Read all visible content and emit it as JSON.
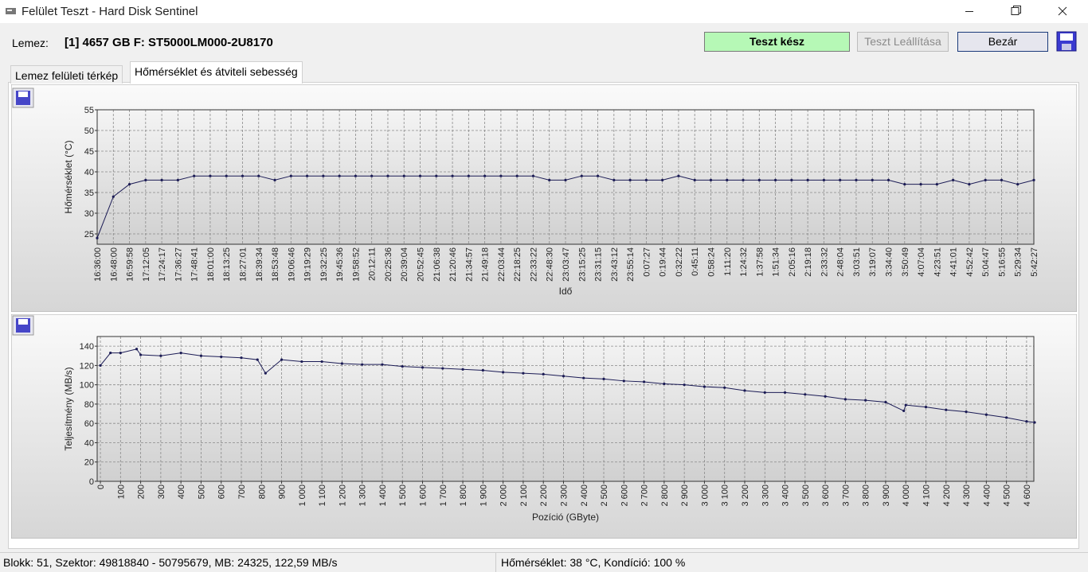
{
  "window": {
    "title": "Felület Teszt - Hard Disk Sentinel"
  },
  "header": {
    "label": "Lemez:",
    "disk": "[1] 4657 GB F: ST5000LM000-2U8170",
    "status": "Teszt kész"
  },
  "buttons": [
    "Teszt Leállítása",
    "Bezár"
  ],
  "tabs": [
    "Lemez felületi térkép",
    "Hőmérséklet és átviteli sebesség"
  ],
  "status_bar": {
    "left": "Blokk: 51, Szektor: 49818840 - 50795679, MB: 24325, 122,59 MB/s",
    "right": "Hőmérséklet: 38  °C,  Kondíció: 100 %"
  },
  "chart_data": [
    {
      "type": "line",
      "x_label": "Idő",
      "y_label": "Hőmérséklet (°C)",
      "color": "#1b1b55",
      "grid": true,
      "categories": [
        "16:36:00",
        "16:48:00",
        "16:59:58",
        "17:12:05",
        "17:24:17",
        "17:36:27",
        "17:48:41",
        "18:01:00",
        "18:13:25",
        "18:27:01",
        "18:39:34",
        "18:53:48",
        "19:06:46",
        "19:19:29",
        "19:32:25",
        "19:45:36",
        "19:58:52",
        "20:12:11",
        "20:25:36",
        "20:39:04",
        "20:52:45",
        "21:06:38",
        "21:20:46",
        "21:34:57",
        "21:49:18",
        "22:03:44",
        "22:18:25",
        "22:33:22",
        "22:48:30",
        "23:03:47",
        "23:15:25",
        "23:31:15",
        "23:43:12",
        "23:55:14",
        "0:07:27",
        "0:19:44",
        "0:32:22",
        "0:45:11",
        "0:58:24",
        "1:11:20",
        "1:24:32",
        "1:37:58",
        "1:51:34",
        "2:05:16",
        "2:19:18",
        "2:33:32",
        "2:48:04",
        "3:03:51",
        "3:19:07",
        "3:34:40",
        "3:50:49",
        "4:07:04",
        "4:23:51",
        "4:41:01",
        "4:52:42",
        "5:04:47",
        "5:16:55",
        "5:29:34",
        "5:42:27"
      ],
      "values": [
        24,
        34,
        37,
        38,
        38,
        38,
        39,
        39,
        39,
        39,
        39,
        38,
        39,
        39,
        39,
        39,
        39,
        39,
        39,
        39,
        39,
        39,
        39,
        39,
        39,
        39,
        39,
        39,
        38,
        38,
        39,
        39,
        38,
        38,
        38,
        38,
        39,
        38,
        38,
        38,
        38,
        38,
        38,
        38,
        38,
        38,
        38,
        38,
        38,
        38,
        37,
        37,
        37,
        38,
        37,
        38,
        38,
        37,
        38
      ],
      "ylim": [
        22.5,
        55
      ],
      "yticks": [
        25,
        30,
        35,
        40,
        45,
        50,
        55
      ]
    },
    {
      "type": "line",
      "x_label": "Pozíció (GByte)",
      "y_label": "Teljesítmény (MB/s)",
      "color": "#1b1b55",
      "grid": true,
      "x": [
        0,
        50,
        100,
        180,
        200,
        300,
        400,
        500,
        600,
        700,
        780,
        820,
        900,
        1000,
        1100,
        1200,
        1300,
        1400,
        1500,
        1600,
        1700,
        1800,
        1900,
        2000,
        2100,
        2200,
        2300,
        2400,
        2500,
        2600,
        2700,
        2800,
        2900,
        3000,
        3100,
        3200,
        3300,
        3400,
        3500,
        3600,
        3700,
        3800,
        3900,
        3990,
        4000,
        4100,
        4200,
        4300,
        4400,
        4500,
        4600,
        4640
      ],
      "values": [
        120,
        133,
        133,
        137,
        131,
        130,
        133,
        130,
        129,
        128,
        126,
        112,
        126,
        124,
        124,
        122,
        121,
        121,
        119,
        118,
        117,
        116,
        115,
        113,
        112,
        111,
        109,
        107,
        106,
        104,
        103,
        101,
        100,
        98,
        97,
        94,
        92,
        92,
        90,
        88,
        85,
        84,
        82,
        73,
        79,
        77,
        74,
        72,
        69,
        66,
        62,
        61
      ],
      "xlim": [
        -16,
        4636
      ],
      "xticks": [
        0,
        100,
        200,
        300,
        400,
        500,
        600,
        700,
        800,
        900,
        {
          "value": 1000,
          "label": "1 000"
        },
        {
          "value": 1100,
          "label": "1 100"
        },
        {
          "value": 1200,
          "label": "1 200"
        },
        {
          "value": 1300,
          "label": "1 300"
        },
        {
          "value": 1400,
          "label": "1 400"
        },
        {
          "value": 1500,
          "label": "1 500"
        },
        {
          "value": 1600,
          "label": "1 600"
        },
        {
          "value": 1700,
          "label": "1 700"
        },
        {
          "value": 1800,
          "label": "1 800"
        },
        {
          "value": 1900,
          "label": "1 900"
        },
        {
          "value": 2000,
          "label": "2 000"
        },
        {
          "value": 2100,
          "label": "2 100"
        },
        {
          "value": 2200,
          "label": "2 200"
        },
        {
          "value": 2300,
          "label": "2 300"
        },
        {
          "value": 2400,
          "label": "2 400"
        },
        {
          "value": 2500,
          "label": "2 500"
        },
        {
          "value": 2600,
          "label": "2 600"
        },
        {
          "value": 2700,
          "label": "2 700"
        },
        {
          "value": 2800,
          "label": "2 800"
        },
        {
          "value": 2900,
          "label": "2 900"
        },
        {
          "value": 3000,
          "label": "3 000"
        },
        {
          "value": 3100,
          "label": "3 100"
        },
        {
          "value": 3200,
          "label": "3 200"
        },
        {
          "value": 3300,
          "label": "3 300"
        },
        {
          "value": 3400,
          "label": "3 400"
        },
        {
          "value": 3500,
          "label": "3 500"
        },
        {
          "value": 3600,
          "label": "3 600"
        },
        {
          "value": 3700,
          "label": "3 700"
        },
        {
          "value": 3800,
          "label": "3 800"
        },
        {
          "value": 3900,
          "label": "3 900"
        },
        {
          "value": 4000,
          "label": "4 000"
        },
        {
          "value": 4100,
          "label": "4 100"
        },
        {
          "value": 4200,
          "label": "4 200"
        },
        {
          "value": 4300,
          "label": "4 300"
        },
        {
          "value": 4400,
          "label": "4 400"
        },
        {
          "value": 4500,
          "label": "4 500"
        },
        {
          "value": 4600,
          "label": "4 600"
        }
      ],
      "ylim": [
        0,
        150
      ],
      "yticks": [
        0,
        20,
        40,
        60,
        80,
        100,
        120,
        140
      ]
    }
  ]
}
